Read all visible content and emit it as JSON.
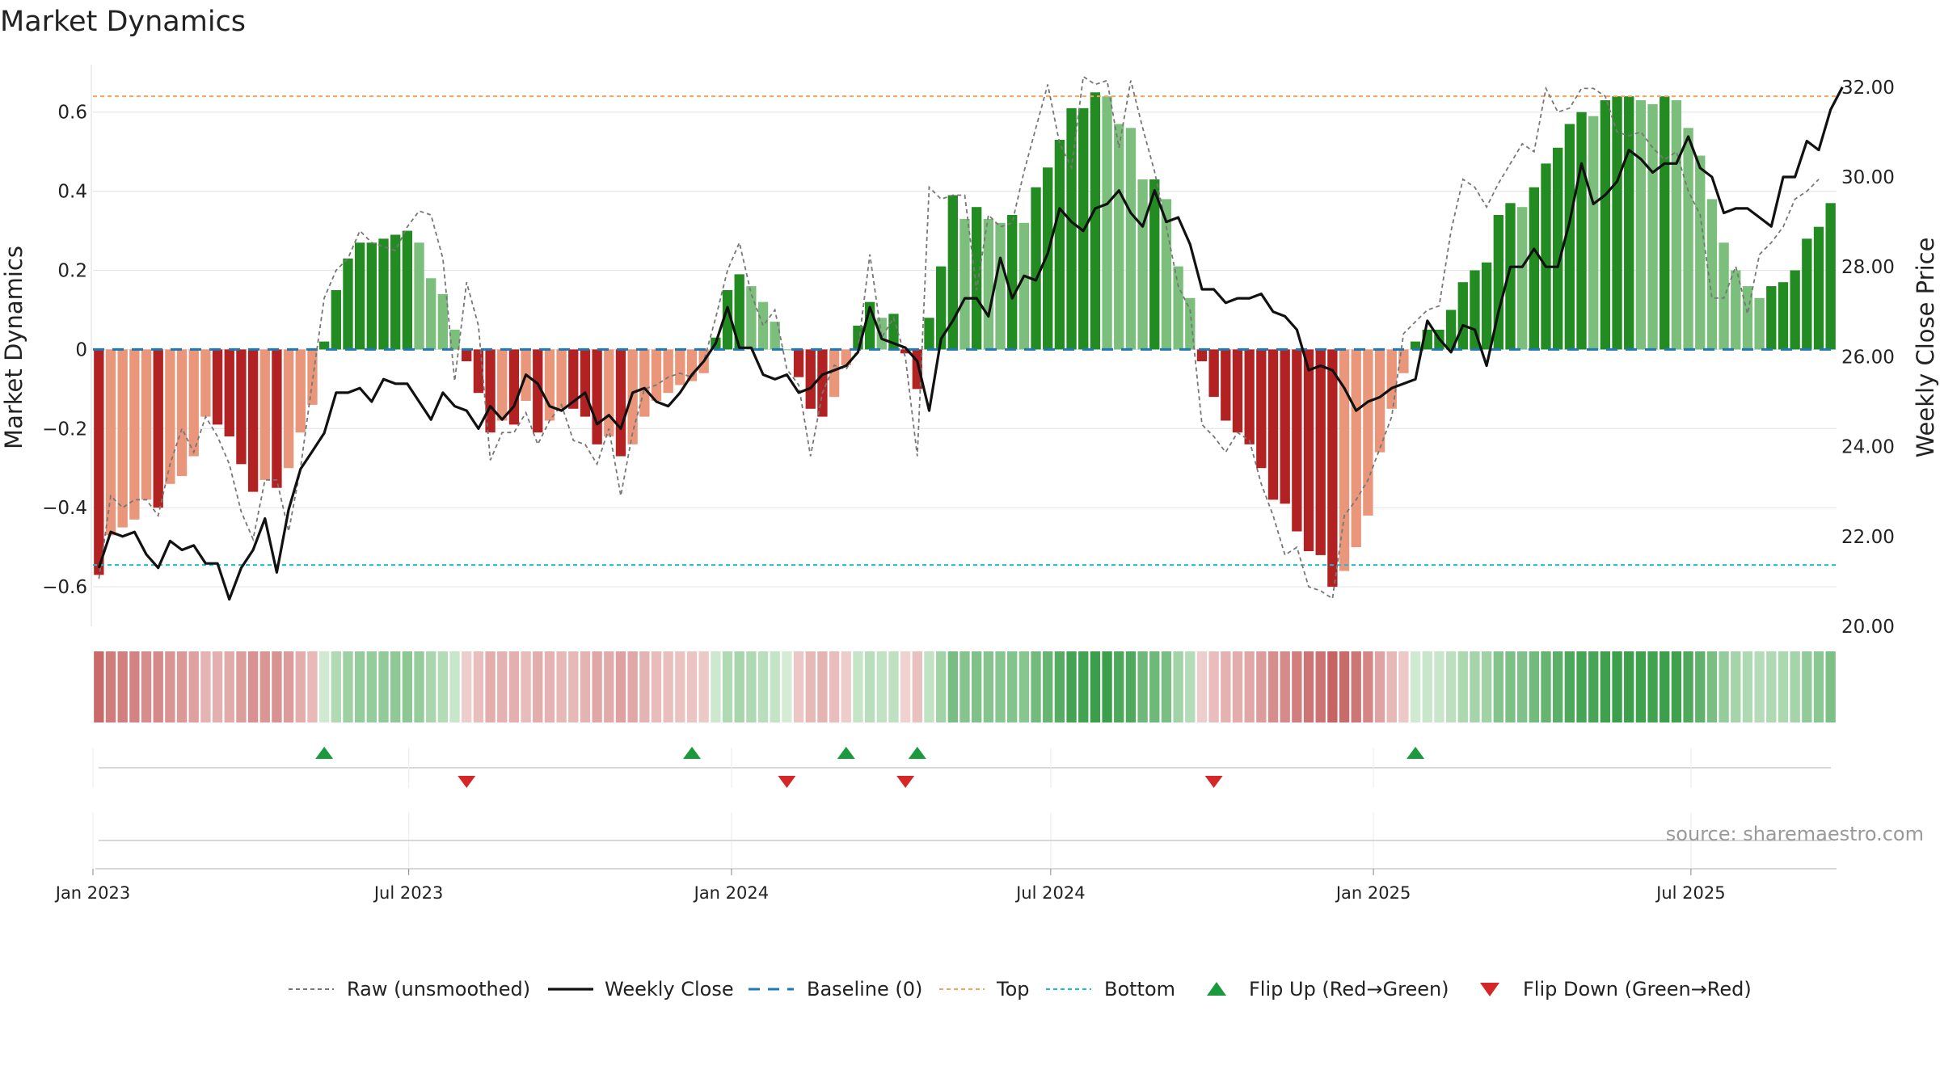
{
  "colors": {
    "up_strong": "#228b22",
    "up_light": "#7cbf7c",
    "down_strong": "#b22222",
    "down_light": "#e9967a",
    "raw": "#777777",
    "close": "#111111",
    "baseline": "#1f77b4",
    "top": "#f4a460",
    "bottom": "#17becf",
    "flip_up": "#1a9a3c",
    "flip_down": "#d62728",
    "grid": "#e6e6e6",
    "source": "#999999"
  },
  "chart_data": {
    "type": "bar",
    "title": "Market Dynamics",
    "ylabel_left": "Market Dynamics",
    "ylabel_right": "Weekly Close Price",
    "ylim_left": [
      -0.7,
      0.72
    ],
    "ylim_right": [
      20.0,
      32.5
    ],
    "yticks_left": [
      {
        "v": 0.6,
        "label": "0.6"
      },
      {
        "v": 0.4,
        "label": "0.4"
      },
      {
        "v": 0.2,
        "label": "0.2"
      },
      {
        "v": 0,
        "label": "0"
      },
      {
        "v": -0.2,
        "label": "−0.2"
      },
      {
        "v": -0.4,
        "label": "−0.4"
      },
      {
        "v": -0.6,
        "label": "−0.6"
      }
    ],
    "yticks_right": [
      {
        "v": 32,
        "label": "32.00"
      },
      {
        "v": 30,
        "label": "30.00"
      },
      {
        "v": 28,
        "label": "28.00"
      },
      {
        "v": 26,
        "label": "26.00"
      },
      {
        "v": 24,
        "label": "24.00"
      },
      {
        "v": 22,
        "label": "22.00"
      },
      {
        "v": 20,
        "label": "20.00"
      }
    ],
    "x_start": "2023-01-02",
    "x_end": "2025-09-22",
    "xticks": [
      {
        "date": "2023-01-02",
        "label": "Jan 2023"
      },
      {
        "date": "2023-07-01",
        "label": "Jul 2023"
      },
      {
        "date": "2024-01-01",
        "label": "Jan 2024"
      },
      {
        "date": "2024-07-01",
        "label": "Jul 2024"
      },
      {
        "date": "2025-01-01",
        "label": "Jan 2025"
      },
      {
        "date": "2025-07-01",
        "label": "Jul 2025"
      }
    ],
    "top_level": 0.64,
    "bottom_level": -0.545,
    "baseline": 0,
    "momentum": [
      -0.57,
      -0.47,
      -0.45,
      -0.43,
      -0.38,
      -0.4,
      -0.34,
      -0.32,
      -0.27,
      -0.17,
      -0.19,
      -0.22,
      -0.29,
      -0.36,
      -0.33,
      -0.35,
      -0.3,
      -0.21,
      -0.14,
      0.02,
      0.15,
      0.23,
      0.27,
      0.27,
      0.28,
      0.29,
      0.3,
      0.27,
      0.18,
      0.14,
      0.05,
      -0.03,
      -0.11,
      -0.21,
      -0.18,
      -0.19,
      -0.13,
      -0.21,
      -0.18,
      -0.15,
      -0.15,
      -0.17,
      -0.24,
      -0.22,
      -0.27,
      -0.24,
      -0.17,
      -0.13,
      -0.11,
      -0.09,
      -0.08,
      -0.06,
      0.03,
      0.15,
      0.19,
      0.16,
      0.12,
      0.07,
      0.0,
      -0.07,
      -0.15,
      -0.17,
      -0.12,
      -0.04,
      0.06,
      0.12,
      0.08,
      0.09,
      -0.01,
      -0.1,
      0.08,
      0.21,
      0.39,
      0.33,
      0.36,
      0.33,
      0.32,
      0.34,
      0.32,
      0.41,
      0.46,
      0.53,
      0.61,
      0.61,
      0.65,
      0.64,
      0.57,
      0.56,
      0.43,
      0.43,
      0.38,
      0.21,
      0.13,
      -0.03,
      -0.12,
      -0.18,
      -0.21,
      -0.24,
      -0.3,
      -0.38,
      -0.39,
      -0.46,
      -0.51,
      -0.52,
      -0.6,
      -0.56,
      -0.5,
      -0.42,
      -0.26,
      -0.15,
      -0.06,
      0.02,
      0.05,
      0.05,
      0.1,
      0.17,
      0.2,
      0.22,
      0.34,
      0.37,
      0.36,
      0.41,
      0.47,
      0.51,
      0.57,
      0.6,
      0.59,
      0.63,
      0.64,
      0.64,
      0.63,
      0.62,
      0.64,
      0.63,
      0.56,
      0.49,
      0.38,
      0.27,
      0.2,
      0.16,
      0.13,
      0.16,
      0.17,
      0.2,
      0.28,
      0.31,
      0.37
    ],
    "raw": [
      -0.58,
      -0.37,
      -0.4,
      -0.38,
      -0.38,
      -0.42,
      -0.29,
      -0.2,
      -0.26,
      -0.17,
      -0.22,
      -0.29,
      -0.41,
      -0.48,
      -0.33,
      -0.33,
      -0.46,
      -0.3,
      -0.08,
      0.13,
      0.2,
      0.23,
      0.3,
      0.27,
      0.26,
      0.25,
      0.31,
      0.35,
      0.34,
      0.23,
      -0.08,
      0.17,
      0.06,
      -0.28,
      -0.21,
      -0.21,
      -0.16,
      -0.24,
      -0.18,
      -0.14,
      -0.23,
      -0.24,
      -0.29,
      -0.2,
      -0.37,
      -0.21,
      -0.1,
      -0.09,
      -0.07,
      -0.06,
      -0.07,
      -0.03,
      0.08,
      0.2,
      0.27,
      0.14,
      0.06,
      0.1,
      -0.05,
      -0.09,
      -0.27,
      -0.11,
      -0.04,
      -0.05,
      0.0,
      0.24,
      0.03,
      0.08,
      -0.02,
      -0.27,
      0.41,
      0.38,
      0.39,
      0.39,
      0.15,
      0.34,
      0.31,
      0.32,
      0.45,
      0.56,
      0.67,
      0.52,
      0.46,
      0.69,
      0.67,
      0.68,
      0.51,
      0.68,
      0.56,
      0.45,
      0.31,
      0.16,
      0.1,
      -0.19,
      -0.22,
      -0.26,
      -0.21,
      -0.23,
      -0.34,
      -0.42,
      -0.52,
      -0.5,
      -0.6,
      -0.61,
      -0.63,
      -0.42,
      -0.38,
      -0.33,
      -0.25,
      -0.17,
      0.04,
      0.07,
      0.1,
      0.11,
      0.3,
      0.43,
      0.41,
      0.36,
      0.42,
      0.47,
      0.52,
      0.5,
      0.66,
      0.6,
      0.61,
      0.66,
      0.66,
      0.64,
      0.55,
      0.54,
      0.55,
      0.51,
      0.48,
      0.5,
      0.4,
      0.34,
      0.13,
      0.13,
      0.21,
      0.09,
      0.24,
      0.27,
      0.31,
      0.38,
      0.4,
      0.43
    ],
    "close": [
      21.3,
      22.1,
      22.0,
      22.1,
      21.6,
      21.3,
      21.9,
      21.7,
      21.8,
      21.4,
      21.4,
      20.6,
      21.3,
      21.7,
      22.4,
      21.2,
      22.6,
      23.5,
      23.9,
      24.3,
      25.2,
      25.2,
      25.3,
      25.0,
      25.5,
      25.4,
      25.4,
      25.0,
      24.6,
      25.2,
      24.9,
      24.8,
      24.4,
      24.9,
      24.6,
      24.9,
      25.6,
      25.4,
      24.9,
      24.8,
      25.0,
      25.2,
      24.5,
      24.7,
      24.4,
      25.2,
      25.3,
      25.0,
      24.9,
      25.2,
      25.6,
      25.9,
      26.3,
      27.1,
      26.2,
      26.2,
      25.6,
      25.5,
      25.6,
      25.2,
      25.3,
      25.6,
      25.7,
      25.8,
      26.1,
      27.1,
      26.4,
      26.3,
      26.2,
      25.9,
      24.8,
      26.4,
      26.8,
      27.3,
      27.3,
      26.9,
      28.2,
      27.3,
      27.8,
      27.7,
      28.3,
      29.3,
      29.0,
      28.8,
      29.3,
      29.4,
      29.7,
      29.2,
      28.9,
      29.7,
      29.0,
      29.1,
      28.5,
      27.5,
      27.5,
      27.2,
      27.3,
      27.3,
      27.4,
      27.0,
      26.9,
      26.6,
      25.7,
      25.8,
      25.7,
      25.3,
      24.8,
      25.0,
      25.1,
      25.3,
      25.4,
      25.5,
      26.8,
      26.4,
      26.1,
      26.7,
      26.6,
      25.8,
      27.0,
      28.0,
      28.0,
      28.4,
      28.0,
      28.0,
      29.0,
      30.3,
      29.4,
      29.6,
      29.9,
      30.6,
      30.4,
      30.1,
      30.3,
      30.3,
      30.9,
      30.2,
      30.0,
      29.2,
      29.3,
      29.3,
      29.1,
      28.9,
      30.0,
      30.0,
      30.8,
      30.6,
      31.5,
      32.0
    ],
    "flip_up_weeks": [
      19,
      50,
      63,
      69,
      111
    ],
    "flip_down_weeks": [
      31,
      58,
      68,
      94
    ]
  },
  "legend": {
    "raw": "Raw (unsmoothed)",
    "close": "Weekly Close",
    "baseline": "Baseline (0)",
    "top": "Top",
    "bottom": "Bottom",
    "flip_up": "Flip Up (Red→Green)",
    "flip_down": "Flip Down (Green→Red)"
  },
  "source": "source: sharemaestro.com"
}
